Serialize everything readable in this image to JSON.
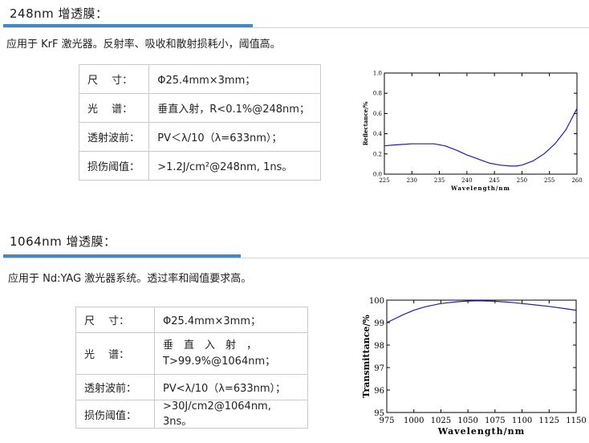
{
  "sections": [
    {
      "title": "248nm  增透膜：",
      "description": "应用于  KrF  激光器。反射率、吸收和散射损耗小，阈值高。",
      "specs": [
        {
          "label": "尺　  寸：",
          "value": "Φ25.4mm×3mm；"
        },
        {
          "label": "光　  谱：",
          "value": "垂直入射，R<0.1%@248nm；"
        },
        {
          "label": "透射波前：",
          "value": "PV＜λ/10（λ=633nm）；"
        },
        {
          "label": "损伤阈值：",
          "value": ">1.2J/cm²@248nm, 1ns。"
        }
      ]
    },
    {
      "title": "1064nm  增透膜：",
      "description": "应用于  Nd:YAG  激光器系统。透过率和阈值要求高。",
      "specs": [
        {
          "label": "尺　  寸：",
          "value": "Φ25.4mm×3mm；"
        },
        {
          "label": "光　  谱：",
          "value": "垂　直　入　射　，T>99.9%@1064nm；"
        },
        {
          "label": "透射波前：",
          "value": "PV<λ/10（λ=633nm）；"
        },
        {
          "label": "损伤阈值：",
          "value": ">30J/cm2@1064nm, 3ns。"
        }
      ]
    }
  ],
  "chart_data": [
    {
      "type": "line",
      "xlabel": "Wavelength/nm",
      "ylabel": "Reflectance/%",
      "xlim": [
        225,
        260
      ],
      "ylim": [
        0.0,
        1.0
      ],
      "xticks": [
        225,
        230,
        235,
        240,
        245,
        250,
        255,
        260
      ],
      "yticks": [
        0.0,
        0.2,
        0.4,
        0.6,
        0.8,
        1.0
      ],
      "x": [
        225,
        227,
        230,
        232,
        234,
        236,
        238,
        240,
        242,
        244,
        246,
        248,
        249,
        250,
        252,
        254,
        256,
        258,
        260
      ],
      "y": [
        0.28,
        0.29,
        0.3,
        0.3,
        0.3,
        0.28,
        0.24,
        0.19,
        0.15,
        0.11,
        0.09,
        0.08,
        0.08,
        0.09,
        0.13,
        0.2,
        0.3,
        0.44,
        0.65
      ],
      "color": "#1f1fa8"
    },
    {
      "type": "line",
      "xlabel": "Wavelength/nm",
      "ylabel": "Transmittance/%",
      "xlim": [
        975,
        1150
      ],
      "ylim": [
        95,
        100
      ],
      "xticks": [
        975,
        1000,
        1025,
        1050,
        1075,
        1100,
        1125,
        1150
      ],
      "yticks": [
        95,
        96,
        97,
        98,
        99,
        100
      ],
      "x": [
        975,
        990,
        1000,
        1010,
        1025,
        1040,
        1050,
        1060,
        1075,
        1090,
        1100,
        1110,
        1125,
        1140,
        1150
      ],
      "y": [
        99.0,
        99.35,
        99.55,
        99.7,
        99.85,
        99.93,
        99.96,
        99.97,
        99.95,
        99.9,
        99.85,
        99.8,
        99.72,
        99.62,
        99.55
      ],
      "color": "#1f1fa8"
    }
  ]
}
